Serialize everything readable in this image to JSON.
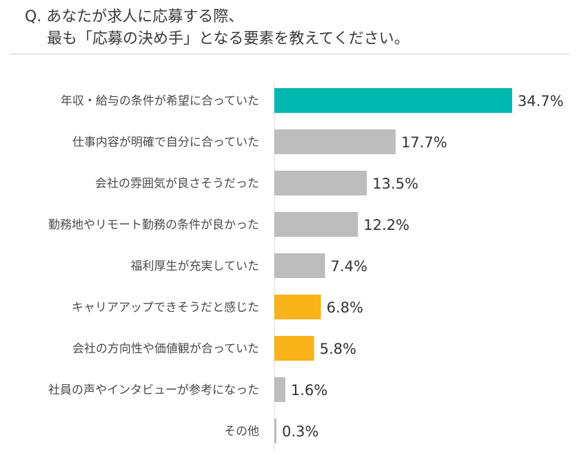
{
  "question": {
    "line1": "Q. あなたが求人に応募する際、",
    "line2": "最も「応募の決め手」となる要素を教えてください。"
  },
  "chart_data": {
    "type": "bar",
    "orientation": "horizontal",
    "categories": [
      "年収・給与の条件が希望に合っていた",
      "仕事内容が明確で自分に合っていた",
      "会社の雰囲気が良さそうだった",
      "勤務地やリモート勤務の条件が良かった",
      "福利厚生が充実していた",
      "キャリアアップできそうだと感じた",
      "会社の方向性や価値観が合っていた",
      "社員の声やインタビューが参考になった",
      "その他"
    ],
    "values": [
      34.7,
      17.7,
      13.5,
      12.2,
      7.4,
      6.8,
      5.8,
      1.6,
      0.3
    ],
    "value_labels": [
      "34.7%",
      "17.7%",
      "13.5%",
      "12.2%",
      "7.4%",
      "6.8%",
      "5.8%",
      "1.6%",
      "0.3%"
    ],
    "colors": [
      "#00b8b0",
      "#bdbdbd",
      "#bdbdbd",
      "#bdbdbd",
      "#bdbdbd",
      "#f8b418",
      "#f8b418",
      "#bdbdbd",
      "#bdbdbd"
    ],
    "unit": "%",
    "xlim": [
      0,
      35
    ],
    "grid": false,
    "legend": "none",
    "axis_color": "#d9d9d9"
  }
}
